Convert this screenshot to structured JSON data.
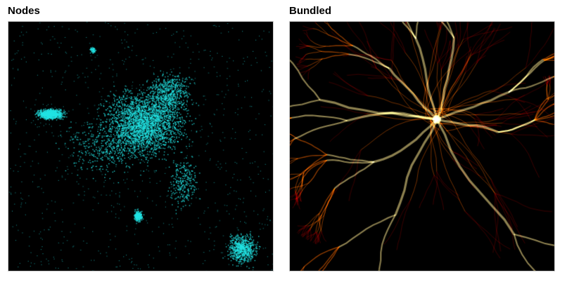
{
  "panels": [
    {
      "title": "Nodes",
      "background": "#000000",
      "accent": "#22e3e3"
    },
    {
      "title": "Bundled",
      "background": "#000000",
      "accent_low": "#b00000",
      "accent_mid": "#ff6a00",
      "accent_high": "#ffe890"
    }
  ]
}
